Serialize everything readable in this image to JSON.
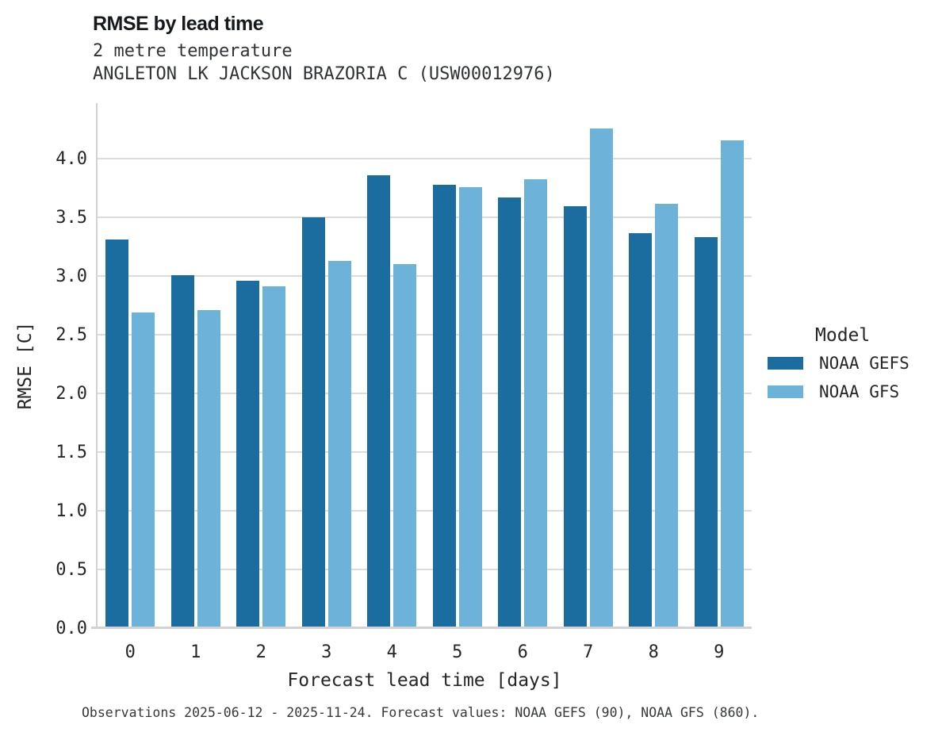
{
  "title": "RMSE by lead time",
  "subtitle1": "2 metre temperature",
  "subtitle2": "ANGLETON LK JACKSON BRAZORIA C (USW00012976)",
  "caption": "Observations 2025-06-12 - 2025-11-24. Forecast values: NOAA GEFS (90), NOAA GFS (860).",
  "legend": {
    "title": "Model",
    "entries": [
      {
        "label": "NOAA GEFS",
        "color": "#1b6d9f"
      },
      {
        "label": "NOAA GFS",
        "color": "#6db2d9"
      }
    ]
  },
  "chart_data": {
    "type": "bar",
    "title": "RMSE by lead time",
    "subtitle": [
      "2 metre temperature",
      "ANGLETON LK JACKSON BRAZORIA C (USW00012976)"
    ],
    "categories": [
      "0",
      "1",
      "2",
      "3",
      "4",
      "5",
      "6",
      "7",
      "8",
      "9"
    ],
    "series": [
      {
        "name": "NOAA GEFS",
        "color": "#1b6d9f",
        "values": [
          3.31,
          3.01,
          2.96,
          3.5,
          3.86,
          3.78,
          3.67,
          3.6,
          3.37,
          3.33
        ]
      },
      {
        "name": "NOAA GFS",
        "color": "#6db2d9",
        "values": [
          2.69,
          2.71,
          2.91,
          3.13,
          3.1,
          3.76,
          3.83,
          4.26,
          3.62,
          4.16
        ]
      }
    ],
    "xlabel": "Forecast lead time [days]",
    "ylabel": "RMSE [C]",
    "ylim": [
      0,
      4.48
    ],
    "yticks": [
      0.0,
      0.5,
      1.0,
      1.5,
      2.0,
      2.5,
      3.0,
      3.5,
      4.0
    ],
    "grid": true,
    "legend_position": "center right"
  }
}
